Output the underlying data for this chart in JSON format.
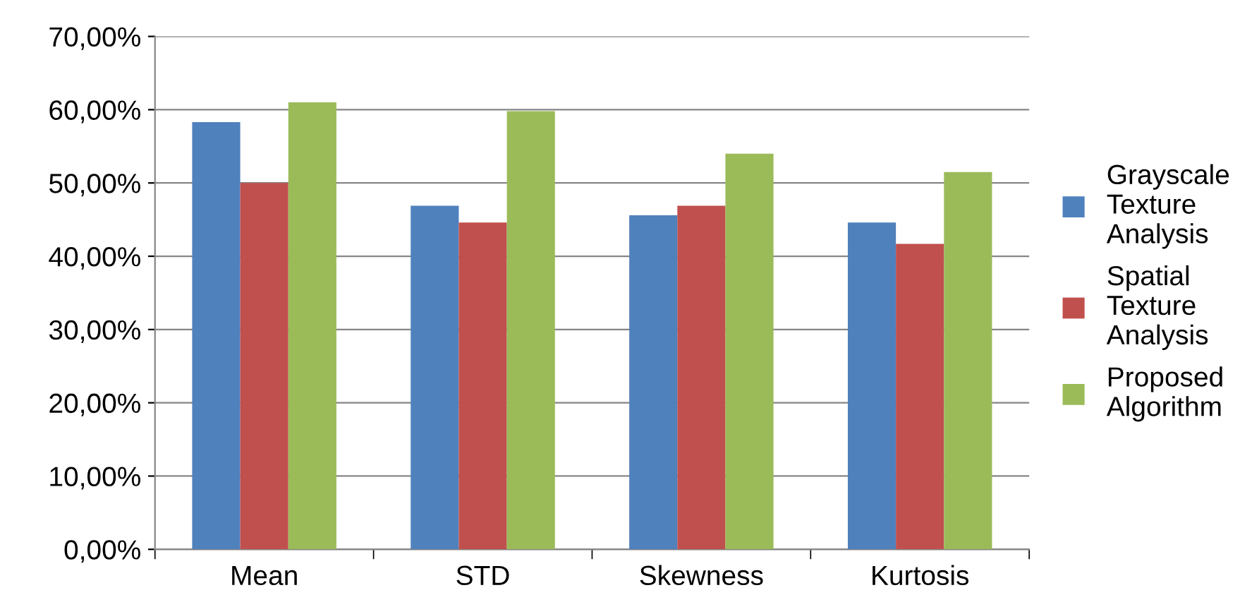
{
  "chart_data": {
    "type": "bar",
    "categories": [
      "Mean",
      "STD",
      "Skewness",
      "Kurtosis"
    ],
    "series": [
      {
        "name": "Grayscale\nTexture\nAnalysis",
        "color": "#4f81bd",
        "values": [
          58.3,
          46.9,
          45.6,
          44.6
        ]
      },
      {
        "name": "Spatial\nTexture\nAnalysis",
        "color": "#c0504d",
        "values": [
          50.0,
          44.6,
          46.9,
          41.7
        ]
      },
      {
        "name": "Proposed\nAlgorithm",
        "color": "#9bbb59",
        "values": [
          61.0,
          59.8,
          54.0,
          51.5
        ]
      }
    ],
    "ylim": [
      0,
      70
    ],
    "yticks": [
      {
        "value": 0,
        "label": "0,00%"
      },
      {
        "value": 10,
        "label": "10,00%"
      },
      {
        "value": 20,
        "label": "20,00%"
      },
      {
        "value": 30,
        "label": "30,00%"
      },
      {
        "value": 40,
        "label": "40,00%"
      },
      {
        "value": 50,
        "label": "50,00%"
      },
      {
        "value": 60,
        "label": "60,00%"
      },
      {
        "value": 70,
        "label": "70,00%"
      }
    ],
    "grid": "y",
    "legend": "right"
  }
}
